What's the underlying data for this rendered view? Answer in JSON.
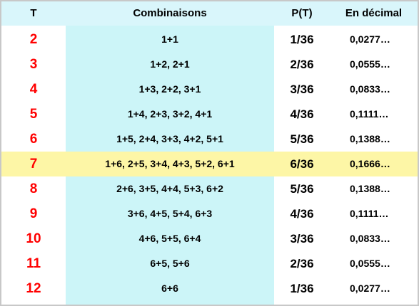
{
  "table": {
    "headers": {
      "t": "T",
      "combinaisons": "Combinaisons",
      "p": "P(T)",
      "decimal": "En décimal"
    },
    "highlight_row": 5,
    "rows": [
      {
        "t": "2",
        "combinaisons": "1+1",
        "p": "1/36",
        "decimal": "0,0277…"
      },
      {
        "t": "3",
        "combinaisons": "1+2, 2+1",
        "p": "2/36",
        "decimal": "0,0555…"
      },
      {
        "t": "4",
        "combinaisons": "1+3, 2+2, 3+1",
        "p": "3/36",
        "decimal": "0,0833…"
      },
      {
        "t": "5",
        "combinaisons": "1+4, 2+3, 3+2, 4+1",
        "p": "4/36",
        "decimal": "0,1111…"
      },
      {
        "t": "6",
        "combinaisons": "1+5, 2+4, 3+3, 4+2, 5+1",
        "p": "5/36",
        "decimal": "0,1388…"
      },
      {
        "t": "7",
        "combinaisons": "1+6, 2+5, 3+4, 4+3, 5+2, 6+1",
        "p": "6/36",
        "decimal": "0,1666…"
      },
      {
        "t": "8",
        "combinaisons": "2+6, 3+5, 4+4, 5+3, 6+2",
        "p": "5/36",
        "decimal": "0,1388…"
      },
      {
        "t": "9",
        "combinaisons": "3+6, 4+5, 5+4, 6+3",
        "p": "4/36",
        "decimal": "0,1111…"
      },
      {
        "t": "10",
        "combinaisons": "4+6, 5+5, 6+4",
        "p": "3/36",
        "decimal": "0,0833…"
      },
      {
        "t": "11",
        "combinaisons": "6+5, 5+6",
        "p": "2/36",
        "decimal": "0,0555…"
      },
      {
        "t": "12",
        "combinaisons": "6+6",
        "p": "1/36",
        "decimal": "0,0277…"
      }
    ],
    "colors": {
      "header_bg": "#d9f6fb",
      "combinaisons_bg": "#ccf5f8",
      "highlight_bg": "#fdf6a6",
      "t_color": "#ff0000"
    }
  }
}
